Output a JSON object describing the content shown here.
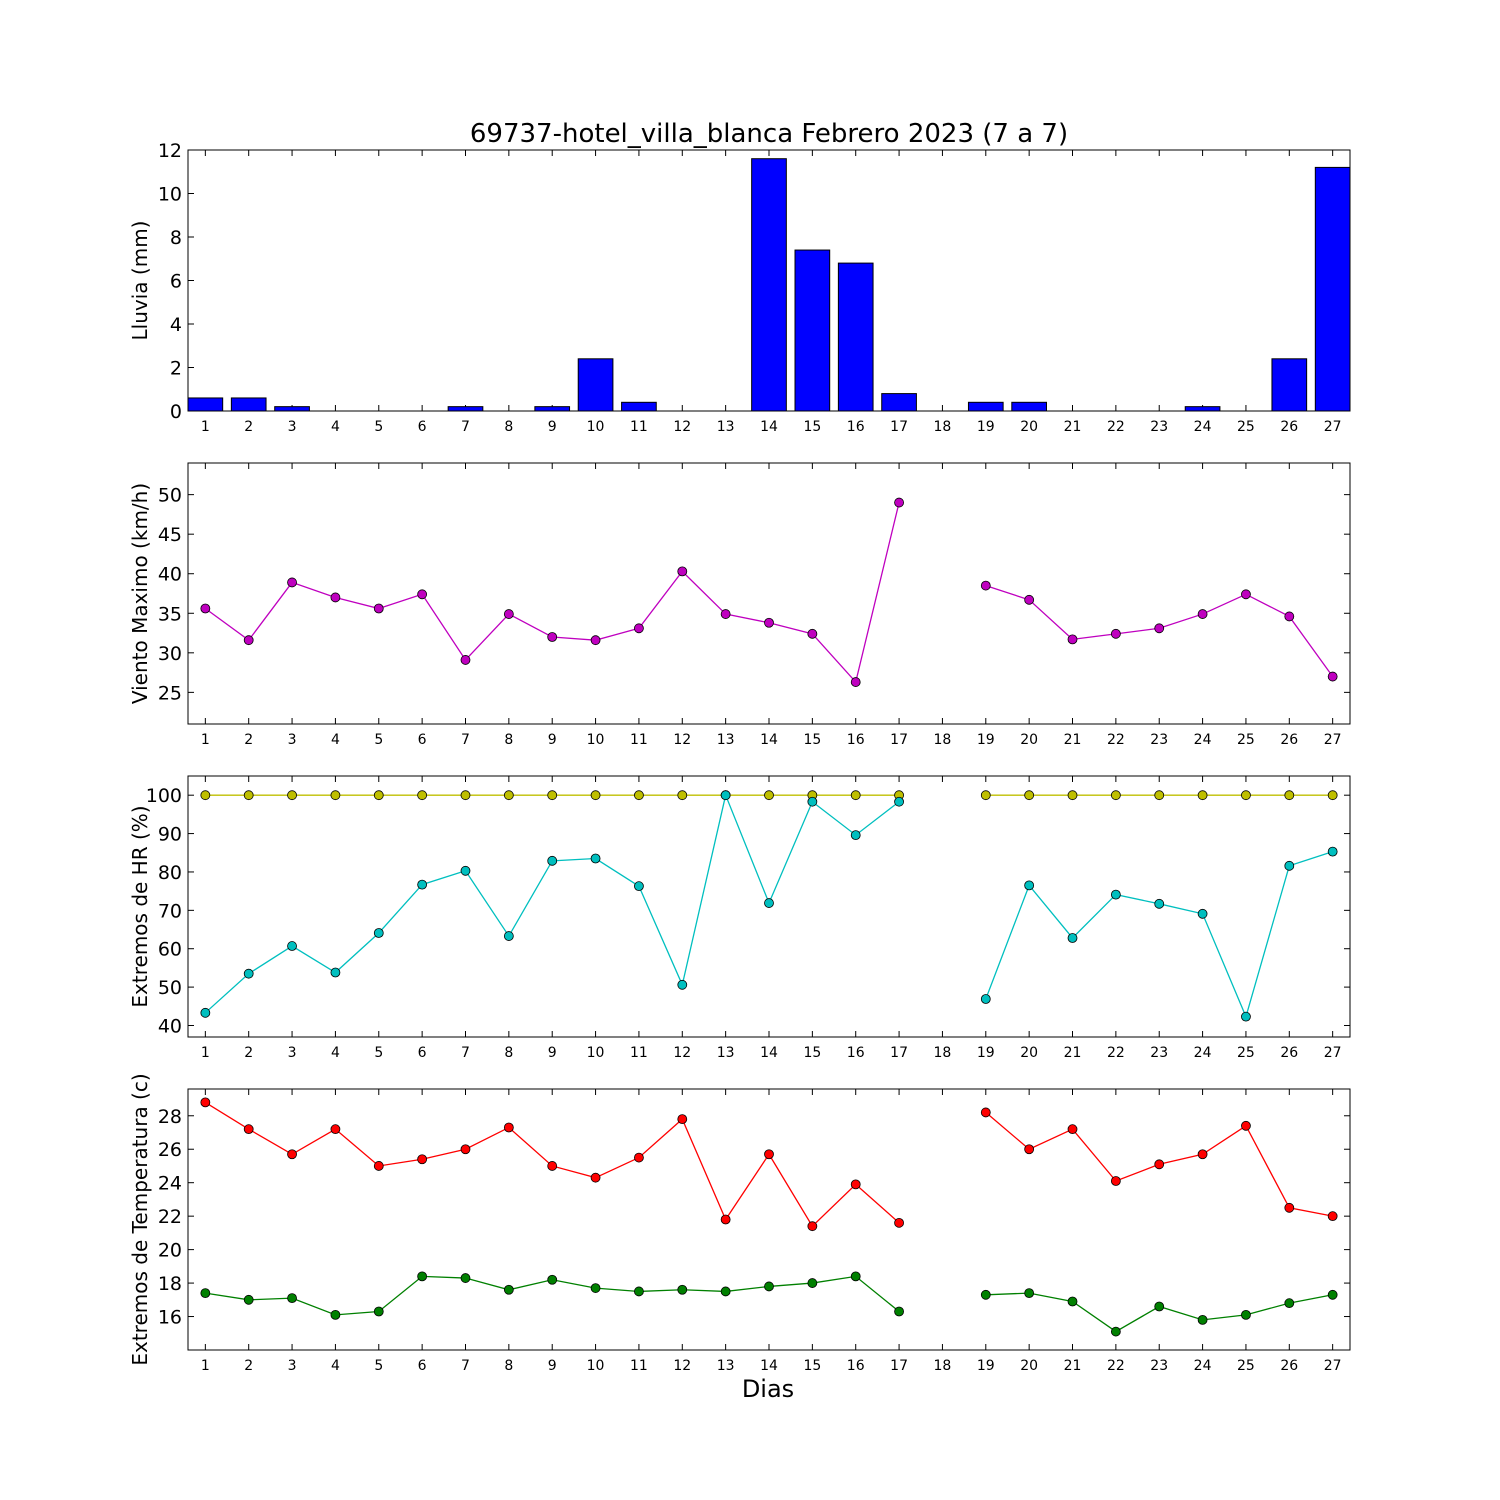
{
  "title": "69737-hotel_villa_blanca Febrero 2023  (7 a 7)",
  "x_axis_label": "Dias",
  "days": [
    1,
    2,
    3,
    4,
    5,
    6,
    7,
    8,
    9,
    10,
    11,
    12,
    13,
    14,
    15,
    16,
    17,
    18,
    19,
    20,
    21,
    22,
    23,
    24,
    25,
    26,
    27
  ],
  "chart_data": [
    {
      "type": "bar",
      "ylabel": "Lluvia (mm)",
      "ylim": [
        0,
        12
      ],
      "yticks": [
        0,
        2,
        4,
        6,
        8,
        10,
        12
      ],
      "categories": [
        1,
        2,
        3,
        4,
        5,
        6,
        7,
        8,
        9,
        10,
        11,
        12,
        13,
        14,
        15,
        16,
        17,
        18,
        19,
        20,
        21,
        22,
        23,
        24,
        25,
        26,
        27
      ],
      "series": [
        {
          "color": "#0000ff",
          "values": [
            0.6,
            0.6,
            0.2,
            0,
            0,
            0,
            0.2,
            0,
            0.2,
            2.4,
            0.4,
            0,
            0,
            11.6,
            7.4,
            6.8,
            0.8,
            null,
            0.4,
            0.4,
            0,
            0,
            0,
            0.2,
            0,
            2.4,
            11.2
          ]
        }
      ]
    },
    {
      "type": "line",
      "ylabel": "Viento Maximo (km/h)",
      "ylim": [
        21,
        54
      ],
      "yticks": [
        25,
        30,
        35,
        40,
        45,
        50
      ],
      "x": [
        1,
        2,
        3,
        4,
        5,
        6,
        7,
        8,
        9,
        10,
        11,
        12,
        13,
        14,
        15,
        16,
        17,
        18,
        19,
        20,
        21,
        22,
        23,
        24,
        25,
        26,
        27
      ],
      "series": [
        {
          "color": "#bf00bf",
          "values": [
            35.6,
            31.6,
            38.9,
            37.0,
            35.6,
            37.4,
            29.1,
            34.9,
            32.0,
            31.6,
            33.1,
            40.3,
            34.9,
            33.8,
            32.4,
            26.3,
            49.0,
            null,
            38.5,
            36.7,
            31.7,
            32.4,
            33.1,
            34.9,
            37.4,
            34.6,
            27.0
          ]
        }
      ]
    },
    {
      "type": "line",
      "ylabel": "Extremos de HR (%)",
      "ylim": [
        37,
        105
      ],
      "yticks": [
        40,
        50,
        60,
        70,
        80,
        90,
        100
      ],
      "x": [
        1,
        2,
        3,
        4,
        5,
        6,
        7,
        8,
        9,
        10,
        11,
        12,
        13,
        14,
        15,
        16,
        17,
        18,
        19,
        20,
        21,
        22,
        23,
        24,
        25,
        26,
        27
      ],
      "series": [
        {
          "color": "#bfbf00",
          "values": [
            100,
            100,
            100,
            100,
            100,
            100,
            100,
            100,
            100,
            100,
            100,
            100,
            100,
            100,
            100,
            100,
            100,
            null,
            100,
            100,
            100,
            100,
            100,
            100,
            100,
            100,
            100
          ]
        },
        {
          "color": "#00bfbf",
          "values": [
            43.3,
            53.5,
            60.7,
            53.8,
            64.1,
            76.7,
            80.3,
            63.3,
            82.9,
            83.5,
            76.3,
            50.6,
            100,
            71.9,
            98.3,
            89.6,
            98.3,
            null,
            46.9,
            76.5,
            62.8,
            74.1,
            71.7,
            69.1,
            42.3,
            81.6,
            85.3
          ]
        }
      ]
    },
    {
      "type": "line",
      "ylabel": "Extremos de Temperatura (c)",
      "ylim": [
        14,
        29.6
      ],
      "yticks": [
        16,
        18,
        20,
        22,
        24,
        26,
        28
      ],
      "x": [
        1,
        2,
        3,
        4,
        5,
        6,
        7,
        8,
        9,
        10,
        11,
        12,
        13,
        14,
        15,
        16,
        17,
        18,
        19,
        20,
        21,
        22,
        23,
        24,
        25,
        26,
        27
      ],
      "series": [
        {
          "color": "#ff0000",
          "values": [
            28.8,
            27.2,
            25.7,
            27.2,
            25.0,
            25.4,
            26.0,
            27.3,
            25.0,
            24.3,
            25.5,
            27.8,
            21.8,
            25.7,
            21.4,
            23.9,
            21.6,
            null,
            28.2,
            26.0,
            27.2,
            24.1,
            25.1,
            25.7,
            27.4,
            22.5,
            22.0
          ]
        },
        {
          "color": "#008000",
          "values": [
            17.4,
            17.0,
            17.1,
            16.1,
            16.3,
            18.4,
            18.3,
            17.6,
            18.2,
            17.7,
            17.5,
            17.6,
            17.5,
            17.8,
            18.0,
            18.4,
            16.3,
            null,
            17.3,
            17.4,
            16.9,
            15.1,
            16.6,
            15.8,
            16.1,
            16.8,
            17.3
          ]
        }
      ]
    }
  ]
}
